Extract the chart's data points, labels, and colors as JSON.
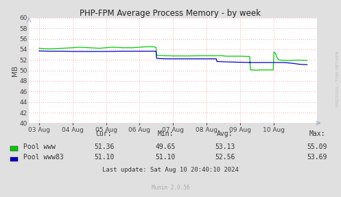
{
  "title": "PHP-FPM Average Process Memory - by week",
  "ylabel": "MB",
  "ylim": [
    40,
    60
  ],
  "yticks": [
    40,
    42,
    44,
    46,
    48,
    50,
    52,
    54,
    56,
    58,
    60
  ],
  "bg_color": "#e0e0e0",
  "plot_bg_color": "#ffffff",
  "grid_color": "#ffaaaa",
  "x_labels": [
    "03 Aug",
    "04 Aug",
    "05 Aug",
    "06 Aug",
    "07 Aug",
    "08 Aug",
    "09 Aug",
    "10 Aug"
  ],
  "watermark": "RRDTOOL / TOBI OETIKER",
  "munin_version": "Munin 2.0.56",
  "last_update": "Last update: Sat Aug 10 20:40:10 2024",
  "legend": [
    {
      "label": "Pool www",
      "color": "#00cc00",
      "cur": "51.36",
      "min": "49.65",
      "avg": "53.13",
      "max": "55.09"
    },
    {
      "label": "Pool www83",
      "color": "#0000cc",
      "cur": "51.10",
      "min": "51.10",
      "avg": "52.56",
      "max": "53.69"
    }
  ],
  "t_www": [
    0,
    0.3,
    0.7,
    1.0,
    1.2,
    1.5,
    1.8,
    2.0,
    2.2,
    2.5,
    2.8,
    3.0,
    3.2,
    3.4,
    3.49,
    3.51,
    3.6,
    3.8,
    4.0,
    4.2,
    4.5,
    4.8,
    5.0,
    5.2,
    5.3,
    5.49,
    5.51,
    5.6,
    5.8,
    6.0,
    6.2,
    6.29,
    6.31,
    6.5,
    6.6,
    6.8,
    6.99,
    7.01,
    7.05,
    7.1,
    7.15,
    7.3,
    7.5,
    7.7,
    8.0
  ],
  "y_www": [
    54.2,
    54.1,
    54.2,
    54.3,
    54.4,
    54.3,
    54.2,
    54.3,
    54.4,
    54.3,
    54.3,
    54.4,
    54.5,
    54.5,
    54.4,
    52.85,
    52.85,
    52.8,
    52.75,
    52.75,
    52.75,
    52.8,
    52.8,
    52.8,
    52.8,
    52.8,
    52.75,
    52.7,
    52.7,
    52.7,
    52.65,
    52.65,
    50.1,
    50.05,
    50.1,
    50.1,
    50.1,
    53.5,
    53.3,
    52.5,
    52.0,
    51.9,
    51.9,
    51.95,
    51.9
  ],
  "t_www83": [
    0,
    0.3,
    0.7,
    1.0,
    1.2,
    1.5,
    1.8,
    2.0,
    2.5,
    3.0,
    3.4,
    3.49,
    3.51,
    3.6,
    3.8,
    4.0,
    4.5,
    5.0,
    5.2,
    5.29,
    5.31,
    5.5,
    5.7,
    6.0,
    6.3,
    6.29,
    6.31,
    6.5,
    6.8,
    7.0,
    7.3,
    7.5,
    7.8,
    8.0
  ],
  "y_www83": [
    53.7,
    53.65,
    53.65,
    53.6,
    53.6,
    53.6,
    53.6,
    53.6,
    53.65,
    53.65,
    53.65,
    53.65,
    52.3,
    52.25,
    52.2,
    52.2,
    52.2,
    52.2,
    52.2,
    52.2,
    51.7,
    51.65,
    51.6,
    51.55,
    51.5,
    51.5,
    51.5,
    51.5,
    51.5,
    51.5,
    51.5,
    51.4,
    51.15,
    51.1
  ]
}
